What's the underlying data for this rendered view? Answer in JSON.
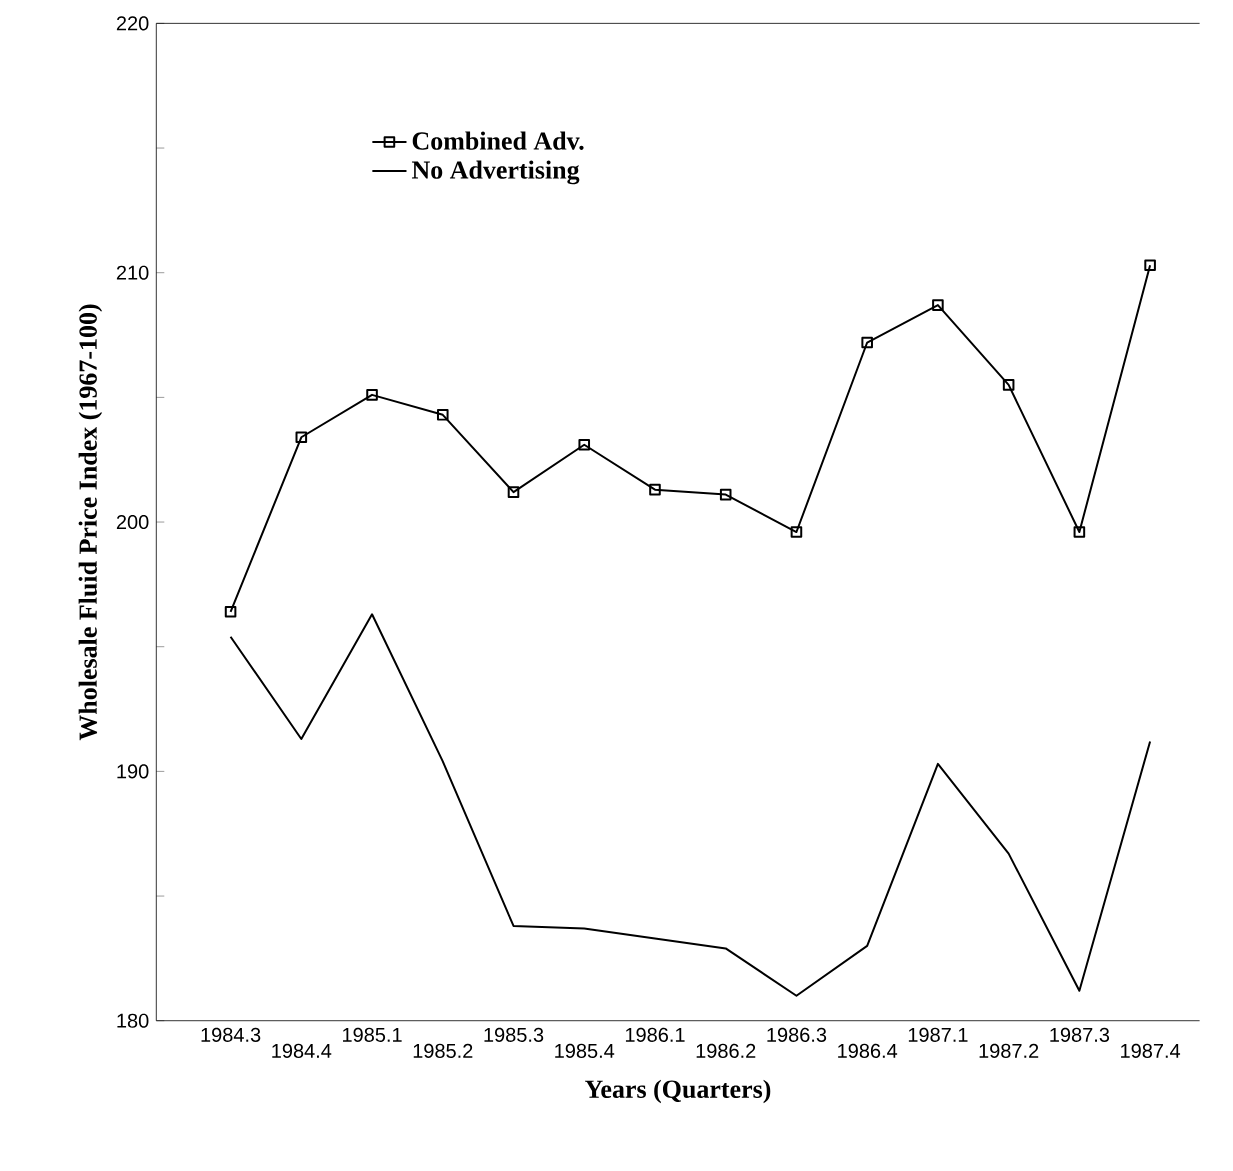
{
  "chart_data": {
    "type": "line",
    "xlabel": "Years (Quarters)",
    "ylabel": "Wholesale Fluid Price Index (1967-100)",
    "categories": [
      "1984.3",
      "1984.4",
      "1985.1",
      "1985.2",
      "1985.3",
      "1985.4",
      "1986.1",
      "1986.2",
      "1986.3",
      "1986.4",
      "1987.1",
      "1987.2",
      "1987.3",
      "1987.4"
    ],
    "series": [
      {
        "name": "Combined Adv.",
        "color": "#000000",
        "marker": "square",
        "values": [
          196.4,
          203.4,
          205.1,
          204.3,
          201.2,
          203.1,
          201.3,
          201.1,
          199.6,
          207.2,
          208.7,
          205.5,
          199.6,
          210.3
        ]
      },
      {
        "name": "No Advertising",
        "color": "#000000",
        "marker": "none",
        "values": [
          195.4,
          191.3,
          196.3,
          190.4,
          183.8,
          183.7,
          183.3,
          182.9,
          181.0,
          183.0,
          190.3,
          186.7,
          181.2,
          191.2
        ]
      }
    ],
    "ylim": [
      180,
      220
    ],
    "yticks": [
      180,
      {
        "value": 185,
        "label": null
      },
      190,
      {
        "value": 195,
        "label": null
      },
      200,
      {
        "value": 205,
        "label": null
      },
      210,
      {
        "value": 215,
        "label": null
      },
      220
    ],
    "legend": "top left",
    "line_style": "solid",
    "grid": false
  }
}
